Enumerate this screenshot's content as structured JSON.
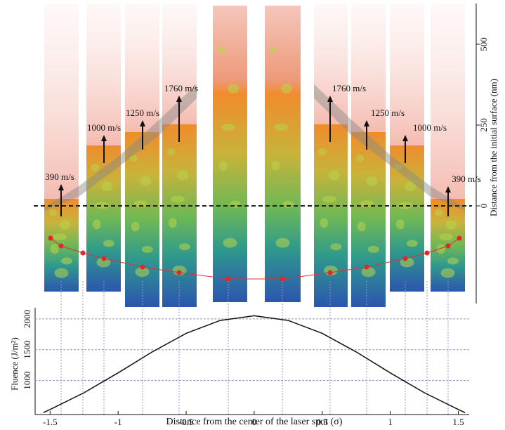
{
  "chart_data": [
    {
      "type": "snapshots",
      "y_label": "Distance from the initial surface (nm)",
      "ylim": [
        -302,
        626
      ],
      "yticks": [
        0,
        250,
        500
      ],
      "annotations": [
        "390 m/s",
        "1000 m/s",
        "1250 m/s",
        "1760 m/s",
        "1760 m/s",
        "1250 m/s",
        "1000 m/s",
        "390 m/s"
      ]
    },
    {
      "type": "line",
      "x_label": "Distance from the center of the laser spot (σ)",
      "y_label": "Fluence (J/m²)",
      "color": "#111111",
      "xlim": [
        -1.61,
        1.58
      ],
      "xticks": [
        -1.5,
        -1,
        -0.5,
        0,
        0.5,
        1,
        1.5
      ],
      "ylim": [
        450,
        2180
      ],
      "yticks": [
        1000,
        1500,
        2000
      ],
      "grid": true,
      "x": [
        -1.55,
        -1.5,
        -1.25,
        -1,
        -0.75,
        -0.5,
        -0.25,
        0,
        0.25,
        0.5,
        0.75,
        1,
        1.25,
        1.5,
        1.55
      ],
      "values": [
        480,
        532,
        804,
        1125,
        1464,
        1765,
        1974,
        2050,
        1974,
        1765,
        1464,
        1125,
        804,
        532,
        480
      ]
    }
  ]
}
